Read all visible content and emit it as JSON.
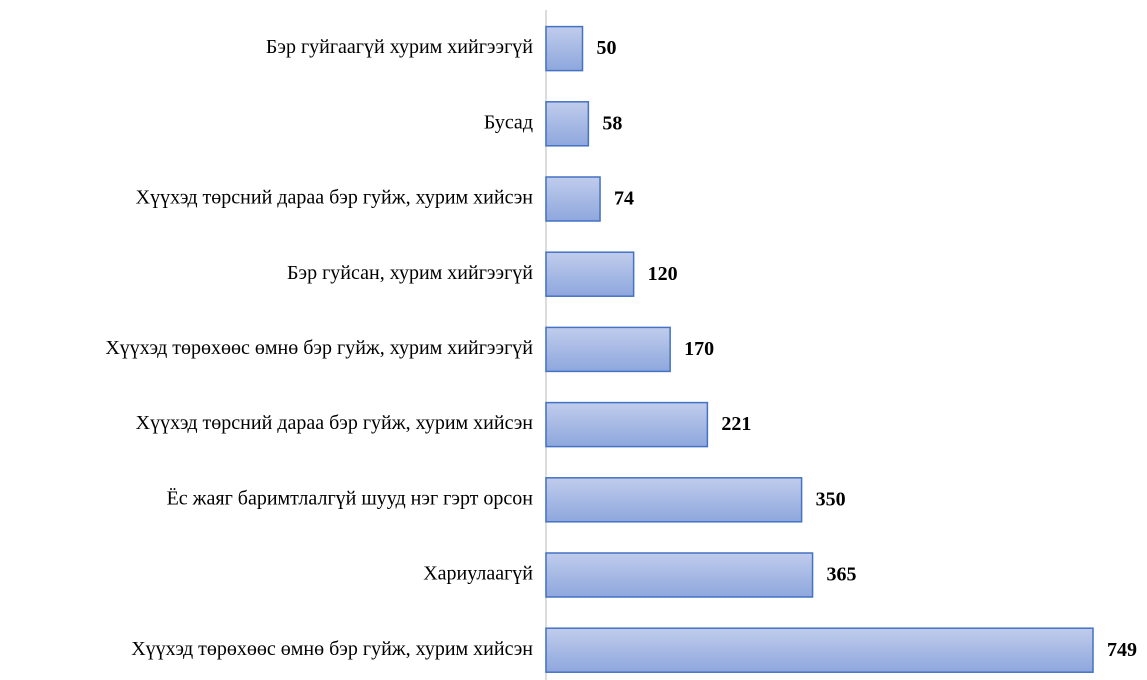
{
  "chart_data": {
    "type": "bar",
    "orientation": "horizontal",
    "categories": [
      "Бэр гуйгаагүй хурим хийгээгүй",
      "Бусад",
      "Хүүхэд төрсний дараа бэр гуйж, хурим хийсэн",
      "Бэр гуйсан, хурим хийгээгүй",
      "Хүүхэд төрөхөөс өмнө бэр гуйж, хурим хийгээгүй",
      "Хүүхэд төрсний дараа бэр гуйж, хурим хийсэн",
      "Ёс жаяг баримтлалгүй шууд нэг гэрт орсон",
      "Хариулаагүй",
      "Хүүхэд төрөхөөс өмнө бэр гуйж, хурим хийсэн"
    ],
    "values": [
      50,
      58,
      74,
      120,
      170,
      221,
      350,
      365,
      749
    ],
    "color": "#4472c4"
  }
}
